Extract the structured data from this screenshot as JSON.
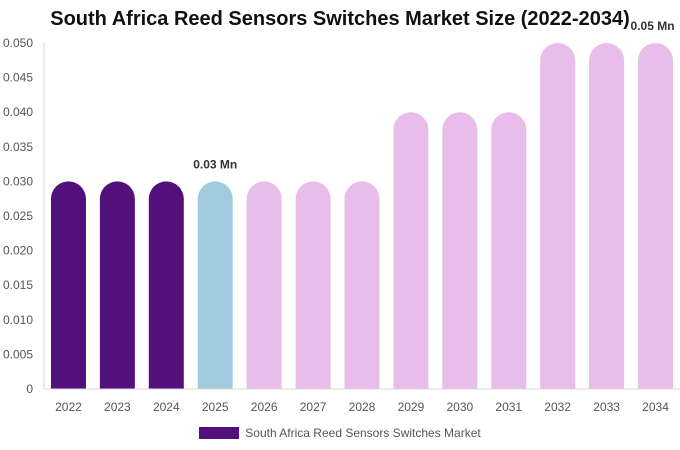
{
  "chart_data": {
    "type": "bar",
    "title": "South Africa Reed Sensors Switches Market Size (2022-2034)",
    "categories": [
      "2022",
      "2023",
      "2024",
      "2025",
      "2026",
      "2027",
      "2028",
      "2029",
      "2030",
      "2031",
      "2032",
      "2033",
      "2034"
    ],
    "series": [
      {
        "name": "South Africa Reed Sensors Switches Market",
        "values": [
          0.03,
          0.03,
          0.03,
          0.03,
          0.03,
          0.03,
          0.03,
          0.04,
          0.04,
          0.04,
          0.05,
          0.05,
          0.05
        ]
      }
    ],
    "y_ticks": [
      "0",
      "0.005",
      "0.010",
      "0.015",
      "0.020",
      "0.025",
      "0.030",
      "0.035",
      "0.040",
      "0.045",
      "0.050"
    ],
    "ylim": [
      0,
      0.05
    ],
    "data_labels": [
      {
        "category": "2025",
        "text": "0.03 Mn"
      },
      {
        "category": "2034",
        "text": "0.05 Mn"
      }
    ],
    "bar_colors": {
      "historical": "#52107a",
      "current": "#a3cbe0",
      "forecast": "#e8bde9"
    },
    "historical_count": 3,
    "current_index": 3,
    "grid": false,
    "legend_position": "bottom",
    "legend_color": "#52107a"
  }
}
